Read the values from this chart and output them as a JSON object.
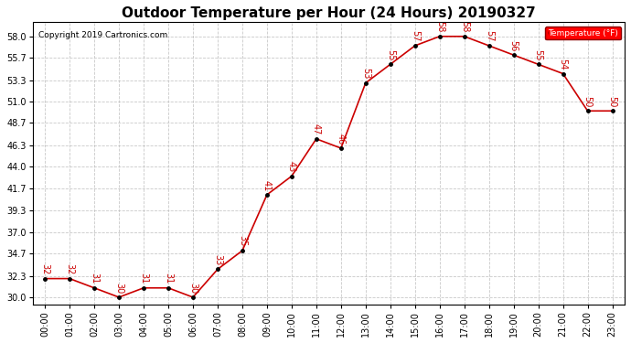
{
  "title": "Outdoor Temperature per Hour (24 Hours) 20190327",
  "copyright": "Copyright 2019 Cartronics.com",
  "legend_label": "Temperature (°F)",
  "hours": [
    "00:00",
    "01:00",
    "02:00",
    "03:00",
    "04:00",
    "05:00",
    "06:00",
    "07:00",
    "08:00",
    "09:00",
    "10:00",
    "11:00",
    "12:00",
    "13:00",
    "14:00",
    "15:00",
    "16:00",
    "17:00",
    "18:00",
    "19:00",
    "20:00",
    "21:00",
    "22:00",
    "23:00"
  ],
  "temps": [
    32,
    32,
    31,
    30,
    31,
    31,
    30,
    33,
    35,
    41,
    43,
    47,
    46,
    53,
    55,
    57,
    58,
    58,
    57,
    56,
    55,
    54,
    50,
    50
  ],
  "line_color": "#cc0000",
  "marker_color": "#000000",
  "bg_color": "#ffffff",
  "grid_color": "#bbbbbb",
  "yticks": [
    30.0,
    32.3,
    34.7,
    37.0,
    39.3,
    41.7,
    44.0,
    46.3,
    48.7,
    51.0,
    53.3,
    55.7,
    58.0
  ],
  "ylim": [
    29.2,
    59.5
  ],
  "title_fontsize": 11,
  "label_fontsize": 7,
  "annot_fontsize": 7,
  "copyright_fontsize": 6.5
}
